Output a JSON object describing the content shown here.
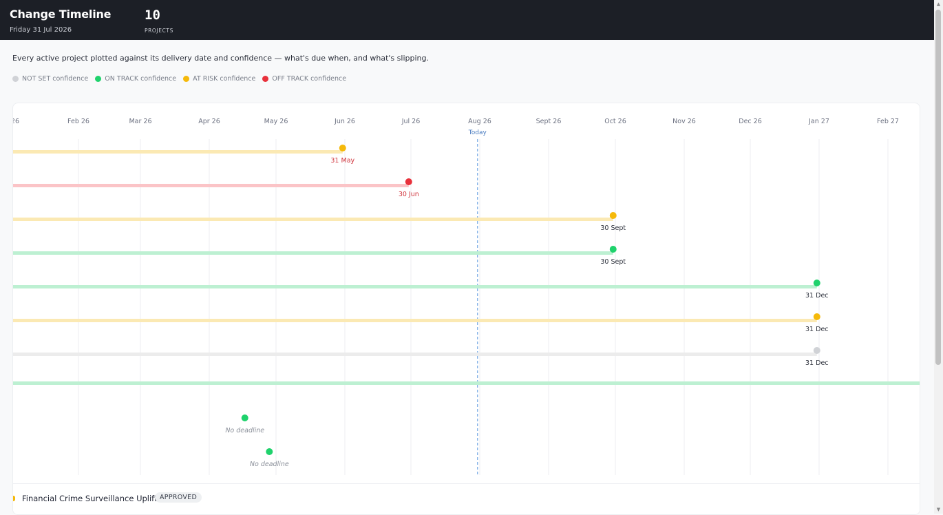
{
  "header": {
    "title": "Change Timeline",
    "date": "Friday 31 Jul 2026",
    "projects_count": "10",
    "projects_label": "PROJECTS"
  },
  "description": "Every active project plotted against its delivery date and confidence — what's due when, and what's slipping.",
  "legend": [
    {
      "label": "NOT SET confidence",
      "color": "#d0d2d6"
    },
    {
      "label": "ON TRACK confidence",
      "color": "#1fd26c"
    },
    {
      "label": "AT RISK confidence",
      "color": "#f5b90a"
    },
    {
      "label": "OFF TRACK confidence",
      "color": "#e8313b"
    }
  ],
  "chart_data": {
    "type": "timeline",
    "x_axis_labels": [
      "26",
      "Feb 26",
      "Mar 26",
      "Apr 26",
      "May 26",
      "Jun 26",
      "Jul 26",
      "Aug 26",
      "Sept 26",
      "Oct 26",
      "Nov 26",
      "Dec 26",
      "Jan 27",
      "Feb 27"
    ],
    "today_label": "Today",
    "today_date": "2026-07-31",
    "status_colors": {
      "not_set": {
        "dot": "#d0d2d6",
        "bar": "#ececec"
      },
      "on_track": {
        "dot": "#1fd26c",
        "bar": "#bdf0d2"
      },
      "at_risk": {
        "dot": "#f5b90a",
        "bar": "#fbe9b3"
      },
      "off_track": {
        "dot": "#e8313b",
        "bar": "#fbc4c7"
      }
    },
    "rows": [
      {
        "status": "at_risk",
        "end_date": "2026-05-31",
        "label": "31 May"
      },
      {
        "status": "off_track",
        "end_date": "2026-06-30",
        "label": "30 Jun"
      },
      {
        "status": "at_risk",
        "end_date": "2026-09-30",
        "label": "30 Sept"
      },
      {
        "status": "on_track",
        "end_date": "2026-09-30",
        "label": "30 Sept"
      },
      {
        "status": "on_track",
        "end_date": "2026-12-31",
        "label": "31 Dec"
      },
      {
        "status": "at_risk",
        "end_date": "2026-12-31",
        "label": "31 Dec"
      },
      {
        "status": "not_set",
        "end_date": "2026-12-31",
        "label": "31 Dec"
      },
      {
        "status": "on_track",
        "end_date": null,
        "label": ""
      },
      {
        "status": "on_track",
        "end_date": null,
        "label": "No deadline",
        "marker_date": "2026-04-17"
      },
      {
        "status": "on_track",
        "end_date": null,
        "label": "No deadline",
        "marker_date": "2026-04-28"
      }
    ]
  },
  "bottom_project": {
    "name": "Financial Crime Surveillance Uplift",
    "badge": "APPROVED"
  }
}
